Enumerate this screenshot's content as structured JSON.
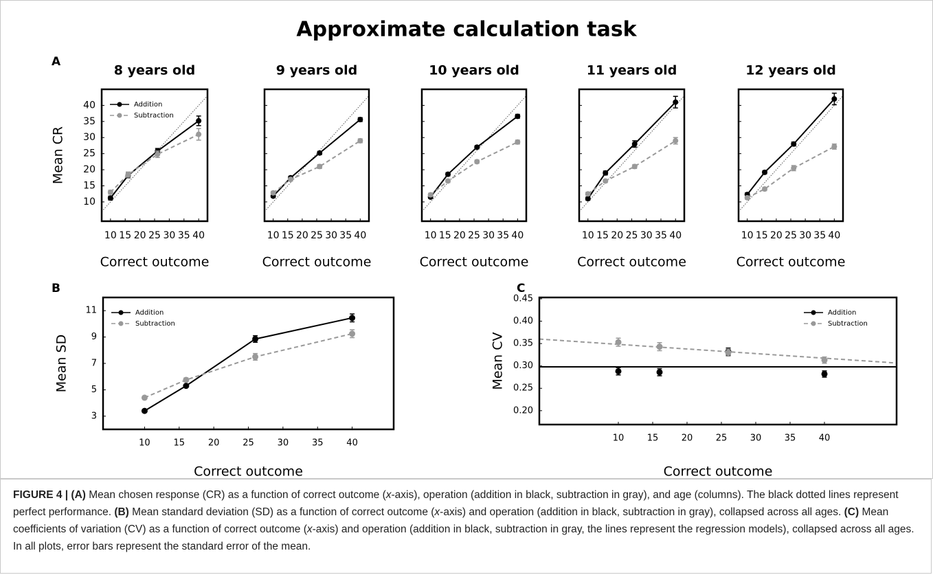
{
  "figure": {
    "title": "Approximate calculation task",
    "panel_labels": [
      "A",
      "B",
      "C"
    ],
    "caption": [
      "FIGURE 4 | (A)",
      " Mean chosen response (CR) as a function of correct outcome (",
      "x",
      "-axis), operation (addition in black, subtraction in gray), and age (columns). The black dotted lines represent perfect performance. ",
      "(B)",
      " Mean standard deviation (SD) as a function of correct outcome (",
      "x",
      "-axis) and operation (addition in black, subtraction in gray), collapsed across all ages. ",
      "(C)",
      " Mean coefficients of variation (CV) as a function of correct outcome (",
      "x",
      "-axis) and operation (addition in black, subtraction in gray, the lines represent the regression models), collapsed across all ages. In all plots, error bars represent the standard error of the mean."
    ]
  },
  "chart_data": [
    {
      "type": "line",
      "title": "8 years old",
      "x_label": "Correct outcome",
      "y_label": "Mean CR",
      "x": [
        10,
        16,
        26,
        40
      ],
      "xlim": [
        7,
        43
      ],
      "ylim": [
        4,
        45
      ],
      "xticks": [
        10,
        15,
        20,
        25,
        30,
        35,
        40
      ],
      "yticks": [
        10,
        15,
        20,
        25,
        30,
        35,
        40
      ],
      "diagonal": true,
      "legend": "upper left",
      "series": [
        {
          "name": "Addition",
          "color": "#000000",
          "linestyle": "solid",
          "values": [
            11.2,
            18.2,
            25.8,
            35.2
          ],
          "errors": [
            0.6,
            0.7,
            0.8,
            1.5
          ]
        },
        {
          "name": "Subtraction",
          "color": "#999999",
          "linestyle": "dashed",
          "values": [
            13,
            18.5,
            24.8,
            31
          ],
          "errors": [
            0.6,
            0.8,
            1.0,
            1.8
          ]
        }
      ]
    },
    {
      "type": "line",
      "title": "9 years old",
      "x_label": "Correct outcome",
      "x": [
        10,
        16,
        26,
        40
      ],
      "xlim": [
        7,
        43
      ],
      "ylim": [
        4,
        45
      ],
      "xticks": [
        10,
        15,
        20,
        25,
        30,
        35,
        40
      ],
      "yticks": [
        10,
        15,
        20,
        25,
        30,
        35,
        40
      ],
      "show_ytick_labels": false,
      "diagonal": true,
      "series": [
        {
          "color": "#000000",
          "linestyle": "solid",
          "values": [
            11.8,
            17.5,
            25.2,
            35.6
          ],
          "errors": [
            0.4,
            0.5,
            0.5,
            0.6
          ]
        },
        {
          "color": "#999999",
          "linestyle": "dashed",
          "values": [
            12.8,
            17,
            21,
            29
          ],
          "errors": [
            0.5,
            0.5,
            0.6,
            0.6
          ]
        }
      ]
    },
    {
      "type": "line",
      "title": "10 years old",
      "x_label": "Correct outcome",
      "x": [
        10,
        16,
        26,
        40
      ],
      "xlim": [
        7,
        43
      ],
      "ylim": [
        4,
        45
      ],
      "xticks": [
        10,
        15,
        20,
        25,
        30,
        35,
        40
      ],
      "yticks": [
        10,
        15,
        20,
        25,
        30,
        35,
        40
      ],
      "show_ytick_labels": false,
      "diagonal": true,
      "series": [
        {
          "color": "#000000",
          "linestyle": "solid",
          "values": [
            11.5,
            18.6,
            27,
            36.6
          ],
          "errors": [
            0.4,
            0.5,
            0.5,
            0.6
          ]
        },
        {
          "color": "#999999",
          "linestyle": "dashed",
          "values": [
            12.2,
            16.5,
            22.5,
            28.6
          ],
          "errors": [
            0.5,
            0.5,
            0.5,
            0.6
          ]
        }
      ]
    },
    {
      "type": "line",
      "title": "11 years old",
      "x_label": "Correct outcome",
      "x": [
        10,
        16,
        26,
        40
      ],
      "xlim": [
        7,
        43
      ],
      "ylim": [
        4,
        45
      ],
      "xticks": [
        10,
        15,
        20,
        25,
        30,
        35,
        40
      ],
      "yticks": [
        10,
        15,
        20,
        25,
        30,
        35,
        40
      ],
      "show_ytick_labels": false,
      "diagonal": true,
      "series": [
        {
          "color": "#000000",
          "linestyle": "solid",
          "values": [
            11,
            19,
            28,
            41
          ],
          "errors": [
            0.5,
            0.6,
            1.0,
            1.8
          ]
        },
        {
          "color": "#999999",
          "linestyle": "dashed",
          "values": [
            12.5,
            16.5,
            21,
            29
          ],
          "errors": [
            0.5,
            0.5,
            0.6,
            1.0
          ]
        }
      ]
    },
    {
      "type": "line",
      "title": "12 years old",
      "x_label": "Correct outcome",
      "x": [
        10,
        16,
        26,
        40
      ],
      "xlim": [
        7,
        43
      ],
      "ylim": [
        4,
        45
      ],
      "xticks": [
        10,
        15,
        20,
        25,
        30,
        35,
        40
      ],
      "yticks": [
        10,
        15,
        20,
        25,
        30,
        35,
        40
      ],
      "show_ytick_labels": false,
      "diagonal": true,
      "series": [
        {
          "color": "#000000",
          "linestyle": "solid",
          "values": [
            12.3,
            19.2,
            28,
            42
          ],
          "errors": [
            0.5,
            0.5,
            0.6,
            1.8
          ]
        },
        {
          "color": "#999999",
          "linestyle": "dashed",
          "values": [
            11.3,
            14,
            20.5,
            27.2
          ],
          "errors": [
            0.5,
            0.5,
            0.8,
            0.8
          ]
        }
      ]
    },
    {
      "type": "line",
      "x_label": "Correct outcome",
      "y_label": "Mean SD",
      "x": [
        10,
        16,
        26,
        40
      ],
      "xlim": [
        4,
        46
      ],
      "ylim": [
        2,
        12
      ],
      "xticks": [
        10,
        15,
        20,
        25,
        30,
        35,
        40
      ],
      "yticks": [
        3,
        5,
        7,
        9,
        11
      ],
      "legend": "upper left",
      "series": [
        {
          "name": "Addition",
          "color": "#000000",
          "linestyle": "solid",
          "values": [
            3.4,
            5.3,
            8.85,
            10.45
          ],
          "errors": [
            0.1,
            0.1,
            0.25,
            0.3
          ]
        },
        {
          "name": "Subtraction",
          "color": "#999999",
          "linestyle": "dashed",
          "values": [
            4.4,
            5.75,
            7.5,
            9.25
          ],
          "errors": [
            0.1,
            0.15,
            0.25,
            0.3
          ]
        }
      ]
    },
    {
      "type": "scatter",
      "x_label": "Correct outcome",
      "y_label": "Mean CV",
      "x": [
        10,
        16,
        26,
        40
      ],
      "xlim": [
        -1.5,
        50.5
      ],
      "ylim": [
        0.169,
        0.453
      ],
      "xticks": [
        10,
        15,
        20,
        25,
        30,
        35,
        40
      ],
      "yticks": [
        {
          "value": 0.2,
          "label": "0.20"
        },
        0.25,
        {
          "value": 0.3,
          "label": "0.30"
        },
        0.35,
        {
          "value": 0.4,
          "label": "0.40"
        },
        0.45
      ],
      "legend": "upper right",
      "series": [
        {
          "name": "Addition",
          "color": "#000000",
          "linestyle": "solid",
          "values": [
            0.288,
            0.286,
            0.332,
            0.282
          ],
          "errors": [
            0.008,
            0.008,
            0.008,
            0.007
          ],
          "regression": {
            "intercept": 0.298,
            "slope": 0
          }
        },
        {
          "name": "Subtraction",
          "color": "#999999",
          "linestyle": "dashed",
          "values": [
            0.353,
            0.343,
            0.33,
            0.313
          ],
          "errors": [
            0.009,
            0.009,
            0.008,
            0.007
          ],
          "regression": {
            "intercept": 0.3585,
            "slope": -0.00103
          }
        }
      ]
    }
  ]
}
